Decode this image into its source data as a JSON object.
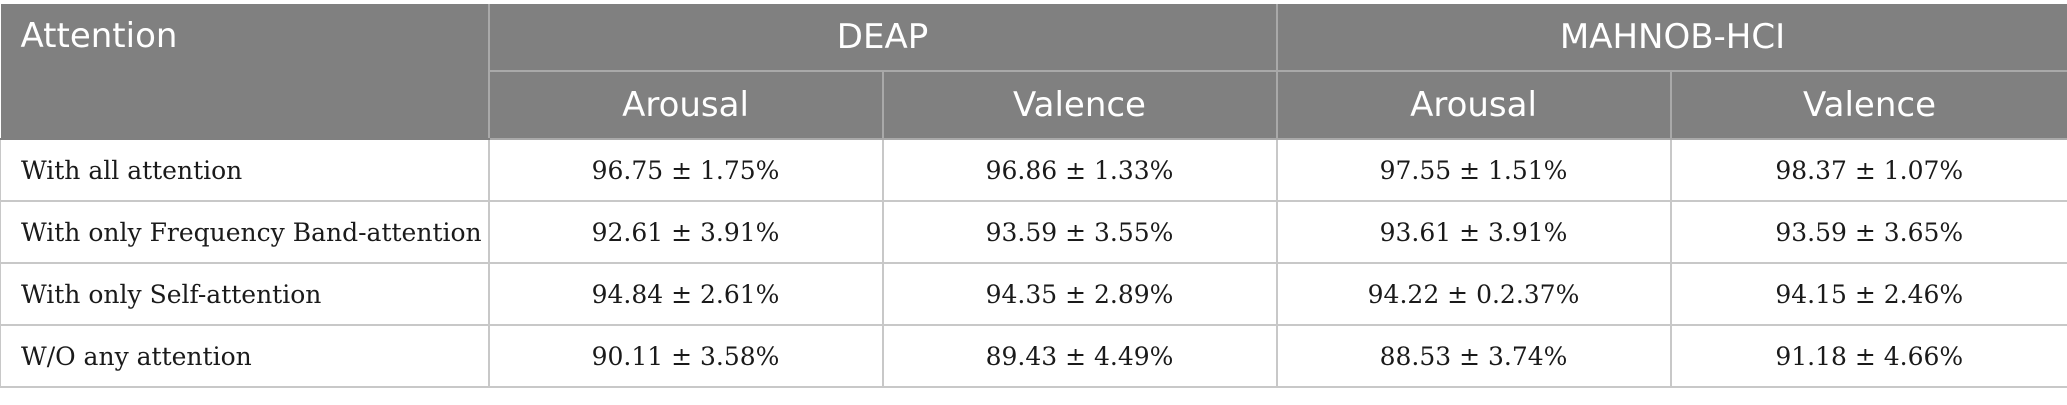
{
  "table": {
    "header": {
      "attention": "Attention",
      "groups": [
        "DEAP",
        "MAHNOB-HCI"
      ],
      "subcolumns": [
        "Arousal",
        "Valence",
        "Arousal",
        "Valence"
      ]
    },
    "rows": [
      {
        "label": "With all attention",
        "values": [
          "96.75 ± 1.75%",
          "96.86 ± 1.33%",
          "97.55 ± 1.51%",
          "98.37 ± 1.07%"
        ]
      },
      {
        "label": "With only Frequency Band-attention",
        "values": [
          "92.61 ± 3.91%",
          "93.59 ± 3.55%",
          "93.61 ± 3.91%",
          "93.59 ± 3.65%"
        ]
      },
      {
        "label": "With only Self-attention",
        "values": [
          "94.84 ± 2.61%",
          "94.35 ± 2.89%",
          "94.22 ± 0.2.37%",
          "94.15 ± 2.46%"
        ]
      },
      {
        "label": "W/O any attention",
        "values": [
          "90.11 ± 3.58%",
          "89.43 ± 4.49%",
          "88.53 ± 3.74%",
          "91.18 ± 4.66%"
        ]
      }
    ]
  },
  "colors": {
    "header_bg": "#808080",
    "header_text": "#ffffff",
    "grid": "#c8c8c8"
  }
}
